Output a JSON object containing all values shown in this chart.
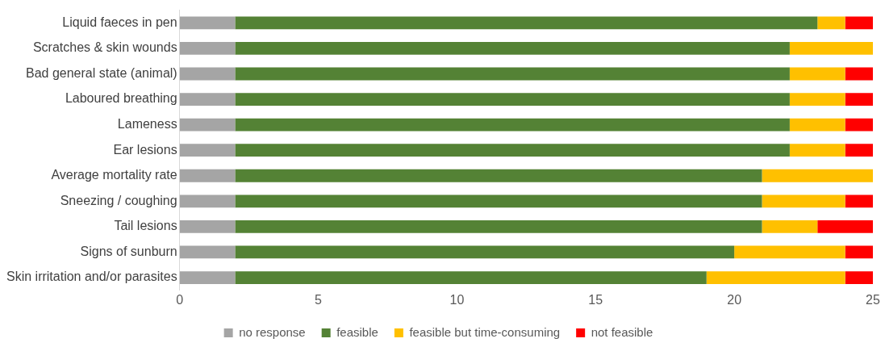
{
  "chart_data": {
    "type": "bar",
    "orientation": "horizontal",
    "stacked": true,
    "categories": [
      "Liquid faeces in pen",
      "Scratches & skin wounds",
      "Bad general state (animal)",
      "Laboured breathing",
      "Lameness",
      "Ear lesions",
      "Average mortality rate",
      "Sneezing / coughing",
      "Tail lesions",
      "Signs of sunburn",
      "Skin irritation and/or parasites"
    ],
    "series": [
      {
        "name": "no response",
        "color": "#a5a5a5",
        "values": [
          2,
          2,
          2,
          2,
          2,
          2,
          2,
          2,
          2,
          2,
          2
        ]
      },
      {
        "name": "feasible",
        "color": "#548235",
        "values": [
          21,
          20,
          20,
          20,
          20,
          20,
          19,
          19,
          19,
          18,
          17
        ]
      },
      {
        "name": "feasible but time-consuming",
        "color": "#ffc000",
        "values": [
          1,
          3,
          2,
          2,
          2,
          2,
          4,
          3,
          2,
          4,
          5
        ]
      },
      {
        "name": "not feasible",
        "color": "#ff0000",
        "values": [
          1,
          0,
          1,
          1,
          1,
          1,
          0,
          1,
          2,
          1,
          1
        ]
      }
    ],
    "xlim": [
      0,
      25
    ],
    "xticks": [
      0,
      5,
      10,
      15,
      20,
      25
    ],
    "grid": false,
    "legend": "bottom"
  }
}
